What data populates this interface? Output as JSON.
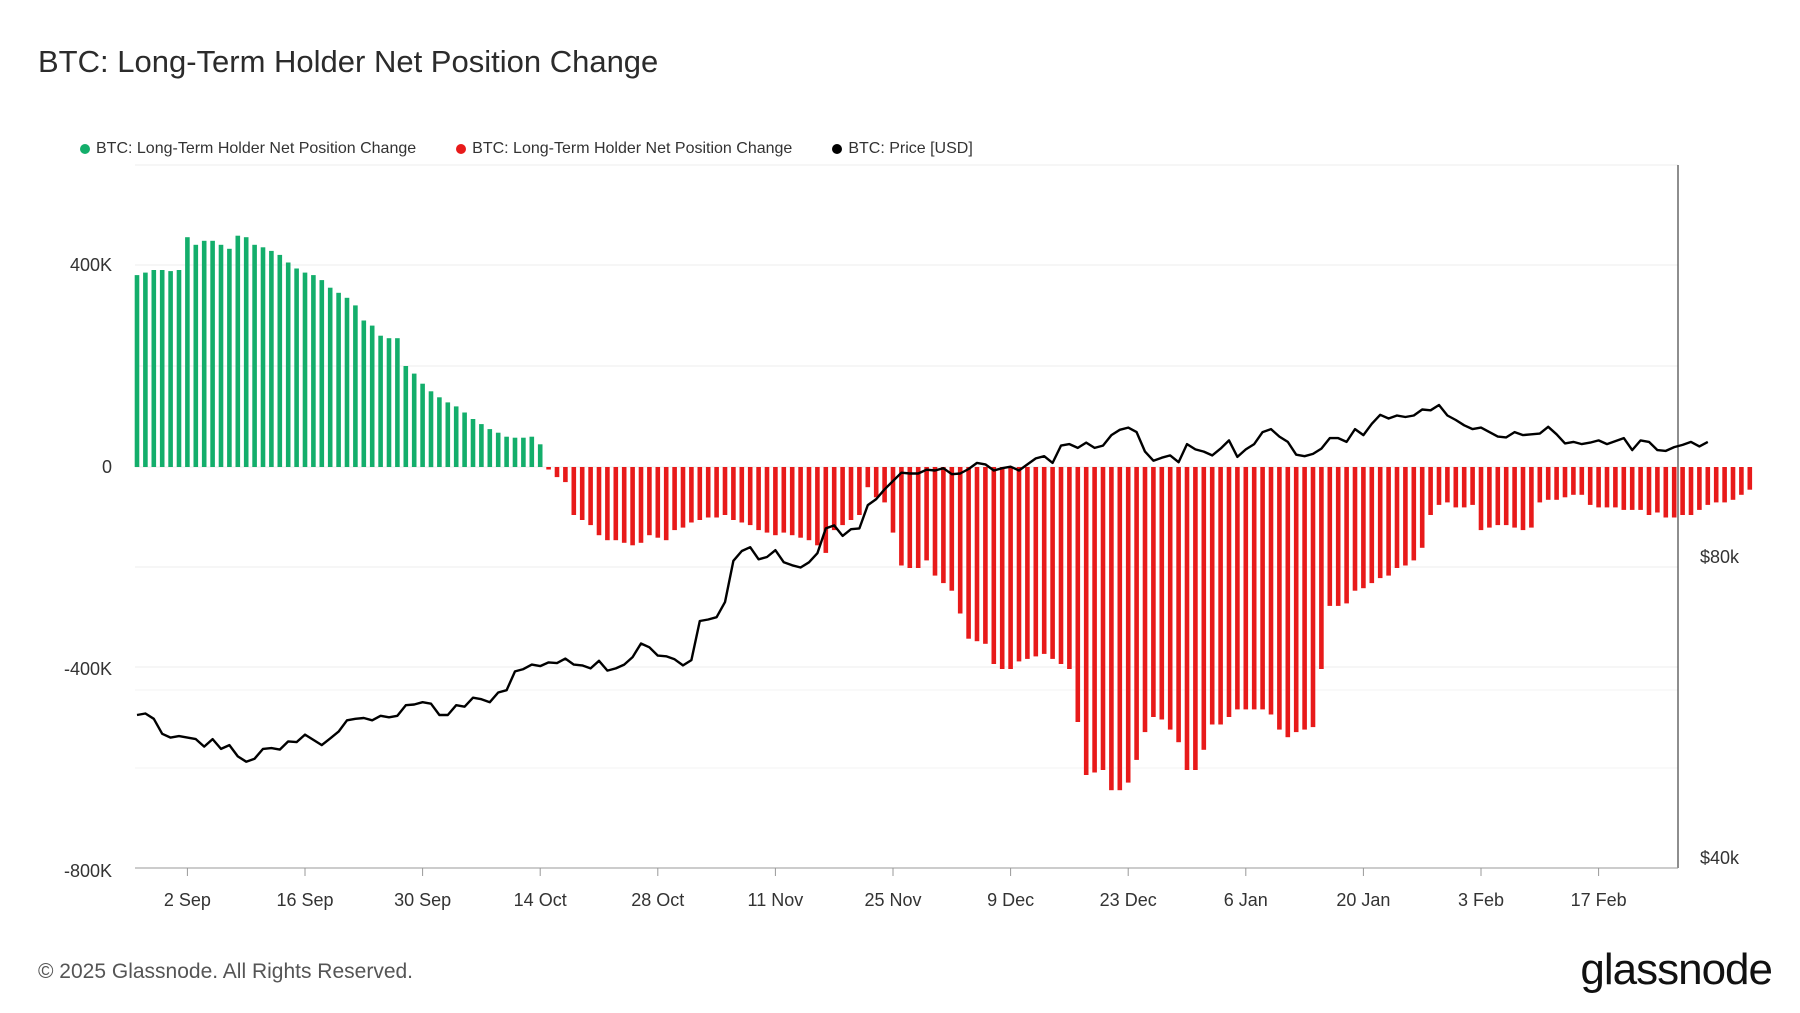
{
  "title": "BTC: Long-Term Holder Net Position Change",
  "legend": [
    {
      "label": "BTC: Long-Term Holder Net Position Change",
      "color": "#13ae6b"
    },
    {
      "label": "BTC: Long-Term Holder Net Position Change",
      "color": "#e81a1a"
    },
    {
      "label": "BTC: Price [USD]",
      "color": "#000000"
    }
  ],
  "footer": {
    "copyright": "© 2025 Glassnode. All Rights Reserved.",
    "brand": "glassnode"
  },
  "chart_data": {
    "type": "bar",
    "x_start": "2024-08-27",
    "x_ticks": [
      "2 Sep",
      "16 Sep",
      "30 Sep",
      "14 Oct",
      "28 Oct",
      "11 Nov",
      "25 Nov",
      "9 Dec",
      "23 Dec",
      "6 Jan",
      "20 Jan",
      "3 Feb",
      "17 Feb"
    ],
    "y_left_ticks": [
      {
        "v": 400000,
        "label": "400K"
      },
      {
        "v": 0,
        "label": "0"
      },
      {
        "v": -400000,
        "label": "-400K"
      },
      {
        "v": -800000,
        "label": "-800K"
      }
    ],
    "y_left_range": [
      -800000,
      600000
    ],
    "y_right_ticks": [
      {
        "v": 80000,
        "label": "$80k"
      },
      {
        "v": 40000,
        "label": "$40k"
      }
    ],
    "y_right_range": [
      40000,
      133000
    ],
    "grid": true,
    "legend_position": "top-left",
    "colors": {
      "positive": "#13ae6b",
      "negative": "#e81a1a",
      "price": "#000000"
    },
    "series": [
      {
        "name": "BTC: Long-Term Holder Net Position Change",
        "values": [
          380000,
          385000,
          390000,
          390000,
          388000,
          390000,
          455000,
          440000,
          448000,
          448000,
          440000,
          432000,
          458000,
          455000,
          440000,
          435000,
          428000,
          420000,
          405000,
          393000,
          385000,
          380000,
          370000,
          355000,
          345000,
          335000,
          320000,
          290000,
          280000,
          260000,
          255000,
          255000,
          200000,
          185000,
          165000,
          150000,
          138000,
          128000,
          120000,
          108000,
          95000,
          85000,
          75000,
          68000,
          60000,
          58000,
          58000,
          60000,
          45000,
          -5000,
          -20000,
          -30000,
          -95000,
          -105000,
          -115000,
          -135000,
          -145000,
          -145000,
          -150000,
          -155000,
          -150000,
          -135000,
          -140000,
          -145000,
          -125000,
          -120000,
          -110000,
          -105000,
          -100000,
          -100000,
          -95000,
          -105000,
          -110000,
          -115000,
          -125000,
          -130000,
          -135000,
          -130000,
          -135000,
          -140000,
          -145000,
          -155000,
          -170000,
          -125000,
          -115000,
          -105000,
          -95000,
          -40000,
          -60000,
          -70000,
          -130000,
          -195000,
          -200000,
          -200000,
          -185000,
          -215000,
          -230000,
          -245000,
          -290000,
          -340000,
          -345000,
          -350000,
          -390000,
          -400000,
          -400000,
          -385000,
          -380000,
          -375000,
          -370000,
          -380000,
          -390000,
          -400000,
          -505000,
          -610000,
          -605000,
          -600000,
          -640000,
          -640000,
          -625000,
          -580000,
          -525000,
          -495000,
          -500000,
          -520000,
          -545000,
          -600000,
          -600000,
          -560000,
          -510000,
          -510000,
          -495000,
          -480000,
          -480000,
          -480000,
          -480000,
          -490000,
          -520000,
          -535000,
          -525000,
          -520000,
          -515000,
          -400000,
          -275000,
          -275000,
          -270000,
          -245000,
          -240000,
          -230000,
          -220000,
          -215000,
          -200000,
          -195000,
          -185000,
          -160000,
          -95000,
          -75000,
          -70000,
          -80000,
          -80000,
          -75000,
          -125000,
          -120000,
          -115000,
          -115000,
          -120000,
          -125000,
          -120000,
          -70000,
          -65000,
          -65000,
          -60000,
          -55000,
          -55000,
          -75000,
          -80000,
          -80000,
          -80000,
          -85000,
          -85000,
          -85000,
          -95000,
          -90000,
          -100000,
          -100000,
          -95000,
          -95000,
          -85000,
          -75000,
          -70000,
          -70000,
          -65000,
          -55000,
          -45000
        ]
      },
      {
        "name": "BTC: Price [USD]",
        "values": [
          59000,
          59200,
          58500,
          56500,
          56000,
          56200,
          56000,
          55800,
          54800,
          55800,
          54500,
          55000,
          53500,
          52800,
          53200,
          54500,
          54600,
          54400,
          55500,
          55400,
          56400,
          55700,
          55000,
          55900,
          56800,
          58300,
          58500,
          58600,
          58300,
          58900,
          58700,
          58900,
          60300,
          60400,
          60700,
          60500,
          59000,
          59000,
          60300,
          60100,
          61300,
          61100,
          60700,
          62000,
          62300,
          64800,
          65100,
          65700,
          65500,
          66000,
          65900,
          66500,
          65700,
          65600,
          65200,
          66200,
          64900,
          65200,
          65700,
          66700,
          68500,
          68000,
          66900,
          66800,
          66400,
          65600,
          66300,
          71500,
          71700,
          72000,
          74000,
          79500,
          80800,
          81300,
          79700,
          80000,
          80900,
          79300,
          78900,
          78600,
          79300,
          80500,
          83800,
          84200,
          82800,
          83700,
          83800,
          86900,
          87700,
          89000,
          90100,
          91200,
          91100,
          91100,
          91600,
          91500,
          91800,
          91000,
          91100,
          91700,
          92500,
          92300,
          91500,
          91800,
          92000,
          91500,
          92300,
          93100,
          93400,
          92500,
          94800,
          95000,
          94500,
          95200,
          94500,
          94800,
          96200,
          96900,
          97200,
          96600,
          94000,
          92800,
          93200,
          93500,
          92600,
          95000,
          94300,
          94000,
          93500,
          94400,
          95500,
          93300,
          94300,
          95000,
          96600,
          97000,
          96000,
          95300,
          93600,
          93400,
          93700,
          94400,
          95800,
          95800,
          95300,
          97000,
          96200,
          97700,
          98900,
          98400,
          98800,
          98600,
          98800,
          99600,
          99500,
          100200,
          98800,
          98200,
          97500,
          97000,
          97200,
          96600,
          96000,
          95900,
          96600,
          96200,
          96300,
          96400,
          97300,
          96300,
          95100,
          95300,
          95000,
          95200,
          95500,
          95000,
          95400,
          95800,
          94200,
          95500,
          95300,
          94200,
          94100,
          94600,
          94900,
          95300,
          94700,
          95300
        ]
      }
    ]
  }
}
